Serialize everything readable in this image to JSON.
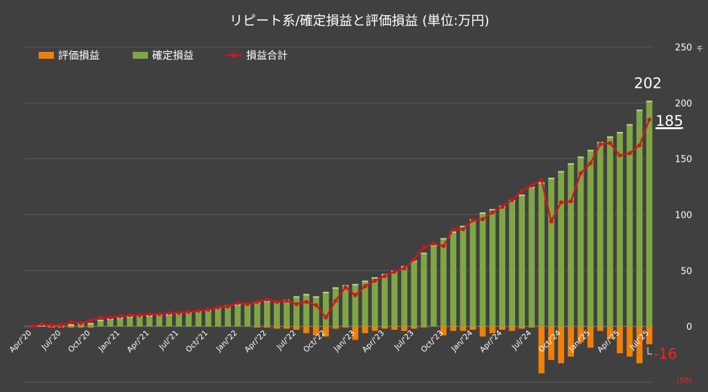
{
  "chart_data": {
    "type": "bar",
    "title": "リピート系/確定損益と評価損益 (単位:万円)",
    "legend": {
      "position": "top-left",
      "items": [
        {
          "name": "評価損益",
          "color": "#f0800a",
          "kind": "bar"
        },
        {
          "name": "確定損益",
          "color": "#7fa644",
          "kind": "bar"
        },
        {
          "name": "損益合計",
          "color": "#d2161e",
          "kind": "line"
        }
      ]
    },
    "y_axis": {
      "position": "right",
      "min": -50,
      "max": 250,
      "step": 50,
      "ticks": [
        "(50)",
        "0",
        "50",
        "100",
        "150",
        "200",
        "250"
      ],
      "unit_label": "千"
    },
    "grid": true,
    "x_tick_labels": [
      {
        "index": 0,
        "label": "Apr/'20"
      },
      {
        "index": 3,
        "label": "Jul/'20"
      },
      {
        "index": 6,
        "label": "Oct/'20"
      },
      {
        "index": 9,
        "label": "Jan/'21"
      },
      {
        "index": 12,
        "label": "Apr/'21"
      },
      {
        "index": 15,
        "label": "Jul/'21"
      },
      {
        "index": 18,
        "label": "Oct/'21"
      },
      {
        "index": 21,
        "label": "Jan/'22"
      },
      {
        "index": 24,
        "label": "Apr/'22"
      },
      {
        "index": 27,
        "label": "Jul/'22"
      },
      {
        "index": 30,
        "label": "Oct/'22"
      },
      {
        "index": 33,
        "label": "Jan/'23"
      },
      {
        "index": 36,
        "label": "Apr/'23"
      },
      {
        "index": 39,
        "label": "Jul/'23"
      },
      {
        "index": 42,
        "label": "Oct/'23"
      },
      {
        "index": 45,
        "label": "Jan/'24"
      },
      {
        "index": 48,
        "label": "Apr/'24"
      },
      {
        "index": 51,
        "label": "Jul/'24"
      },
      {
        "index": 54,
        "label": "Oct/'24"
      },
      {
        "index": 57,
        "label": "Jan/'25"
      },
      {
        "index": 60,
        "label": "Apr/'25"
      },
      {
        "index": 63,
        "label": "Jul/'25"
      }
    ],
    "series": [
      {
        "name": "確定損益",
        "values": [
          0,
          1,
          1,
          2,
          2,
          3,
          3,
          6,
          7,
          8,
          9,
          10,
          10,
          11,
          11,
          12,
          13,
          14,
          15,
          17,
          19,
          20,
          21,
          22,
          23,
          23,
          24,
          27,
          29,
          27,
          31,
          35,
          37,
          38,
          41,
          44,
          47,
          50,
          54,
          59,
          66,
          73,
          79,
          85,
          90,
          96,
          102,
          105,
          108,
          113,
          118,
          125,
          129,
          133,
          139,
          146,
          152,
          158,
          165,
          170,
          174,
          181,
          194,
          202
        ],
        "color": "#7fa644"
      },
      {
        "name": "評価損益",
        "values": [
          0,
          0,
          -1,
          -1,
          -1,
          -1,
          -1,
          0,
          0,
          0,
          0,
          0,
          0,
          0,
          0,
          0,
          0,
          0,
          0,
          0,
          0,
          0,
          0,
          -1,
          -1,
          -2,
          -2,
          -3,
          -6,
          -8,
          -9,
          -2,
          -1,
          -12,
          -6,
          -4,
          -2,
          -3,
          -4,
          -2,
          -1,
          0,
          -8,
          -4,
          -4,
          -3,
          -9,
          -6,
          -3,
          -4,
          -2,
          -1,
          -42,
          -30,
          -33,
          -27,
          -14,
          -19,
          -4,
          -11,
          -24,
          -27,
          -33,
          -16
        ],
        "color": "#f0800a"
      },
      {
        "name": "損益合計",
        "values": [
          0,
          2,
          1,
          1,
          4,
          3,
          5,
          8,
          8,
          9,
          10,
          10,
          11,
          11,
          12,
          12,
          13,
          14,
          15,
          17,
          18,
          21,
          20,
          22,
          24,
          22,
          23,
          20,
          22,
          19,
          8,
          23,
          35,
          28,
          36,
          41,
          45,
          49,
          52,
          60,
          71,
          74,
          72,
          87,
          87,
          95,
          96,
          102,
          107,
          113,
          121,
          126,
          131,
          94,
          111,
          112,
          137,
          146,
          163,
          164,
          153,
          155,
          162,
          185
        ],
        "color": "#d2161e"
      }
    ],
    "annotations": [
      {
        "label": "202",
        "series": "確定損益",
        "index": 63
      },
      {
        "label": "185",
        "series": "損益合計",
        "index": 63
      },
      {
        "label": "-16",
        "series": "評価損益",
        "index": 63
      }
    ]
  }
}
